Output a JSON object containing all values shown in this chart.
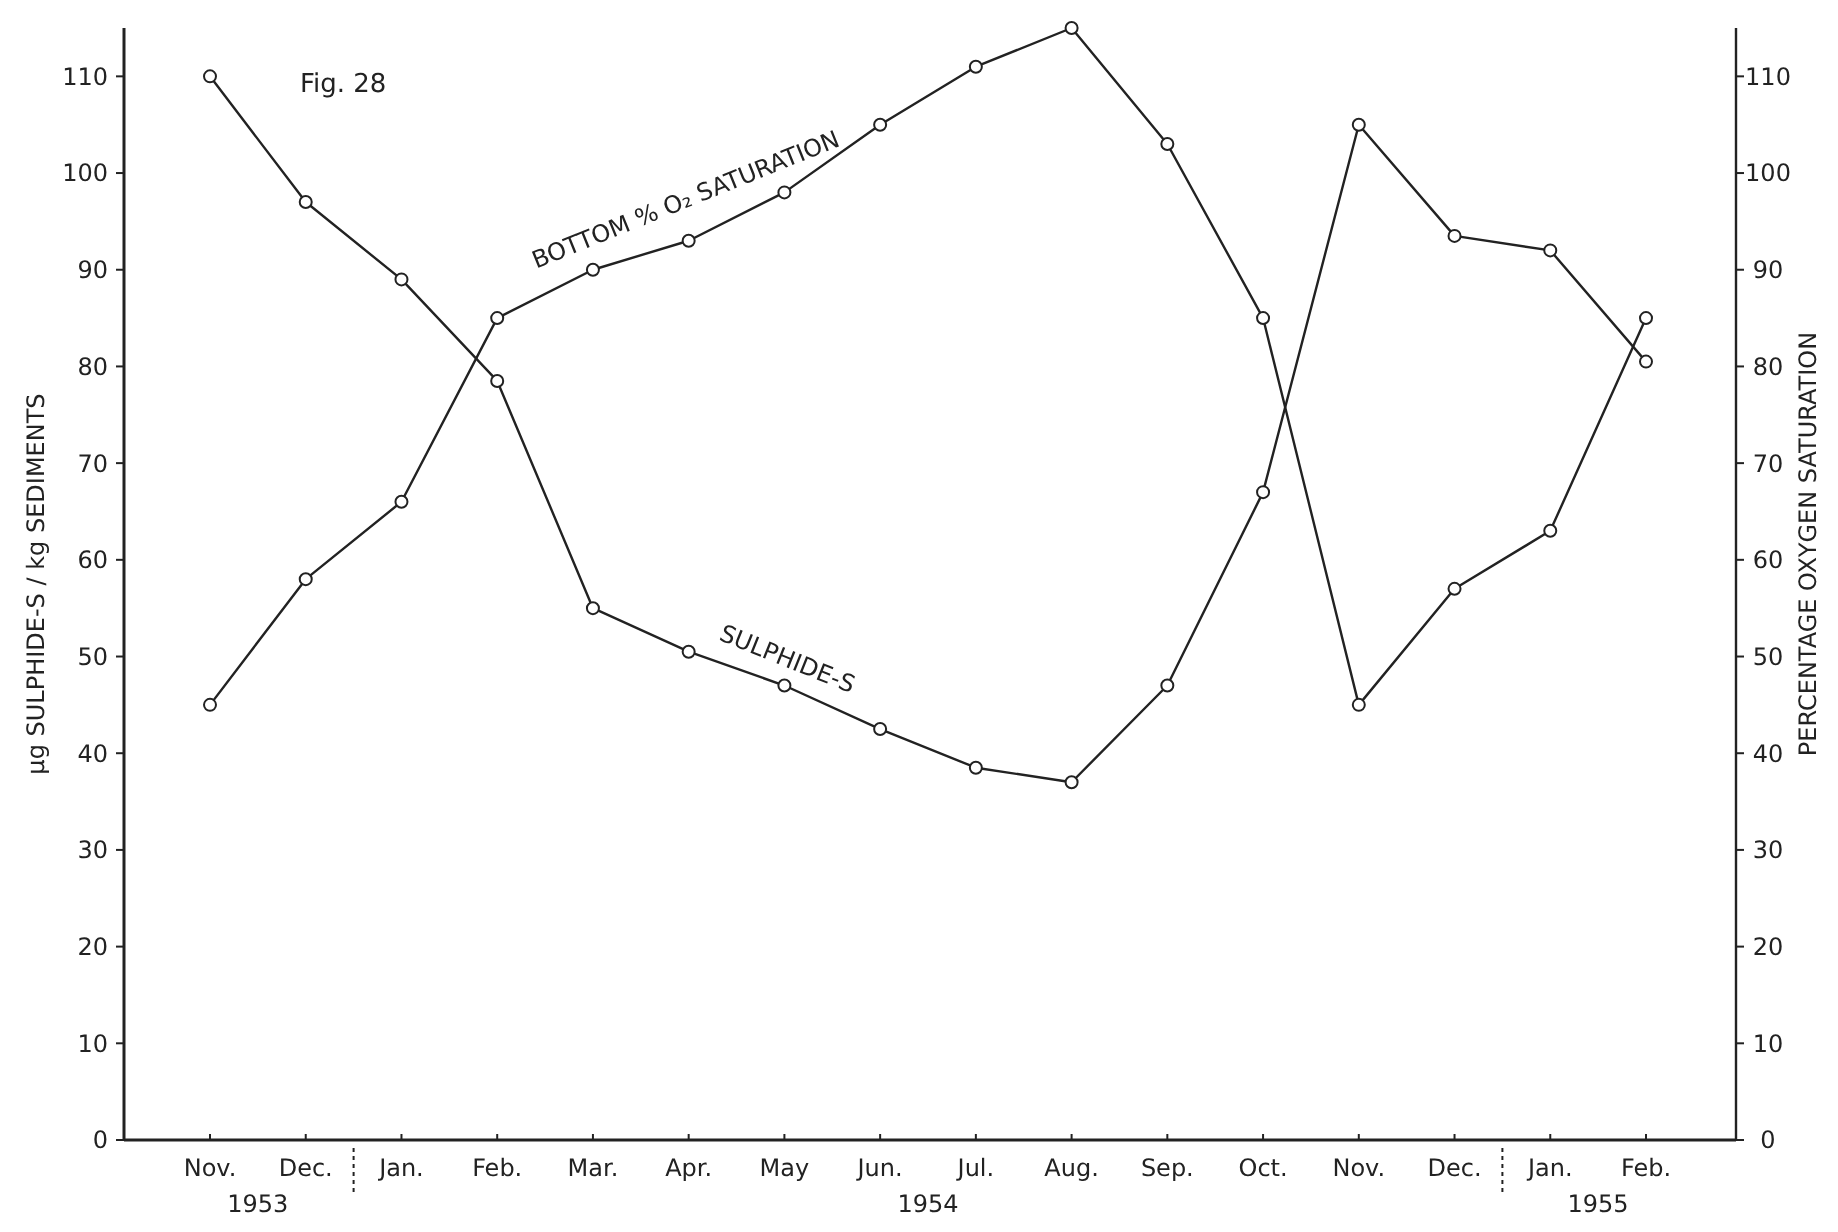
{
  "chart_data": {
    "type": "line",
    "categories": [
      "Nov.",
      "Dec.",
      "Jan.",
      "Feb.",
      "Mar.",
      "Apr.",
      "May",
      "Jun.",
      "Jul.",
      "Aug.",
      "Sep.",
      "Oct.",
      "Nov.",
      "Dec.",
      "Jan.",
      "Feb."
    ],
    "series": [
      {
        "name": "SULPHIDE-S",
        "color": "#222222",
        "values": [
          110,
          97,
          89,
          78.5,
          55,
          50.5,
          47,
          42.5,
          38.5,
          37,
          47,
          67,
          105,
          93.5,
          92,
          80.5
        ]
      },
      {
        "name": "BOTTOM % O₂ SATURATION",
        "color": "#222222",
        "axis": "y2",
        "values": [
          45,
          58,
          66,
          85,
          90,
          93,
          98,
          105,
          111,
          115,
          103,
          85,
          45,
          57,
          63,
          85
        ]
      }
    ],
    "ylabel": "µg SULPHIDE-S / kg SEDIMENTS",
    "y2label": "PERCENTAGE OXYGEN SATURATION",
    "ylim": [
      0,
      115
    ],
    "yticks": [
      0,
      10,
      20,
      30,
      40,
      50,
      60,
      70,
      80,
      90,
      100,
      110
    ],
    "y2lim": [
      0,
      115
    ],
    "y2ticks": [
      0,
      10,
      20,
      30,
      40,
      50,
      60,
      70,
      80,
      90,
      100,
      110
    ],
    "annotations": [
      "Fig. 28",
      "1953",
      "1954",
      "1955"
    ],
    "marker": "circle",
    "line_style": "solid",
    "grid": false
  }
}
